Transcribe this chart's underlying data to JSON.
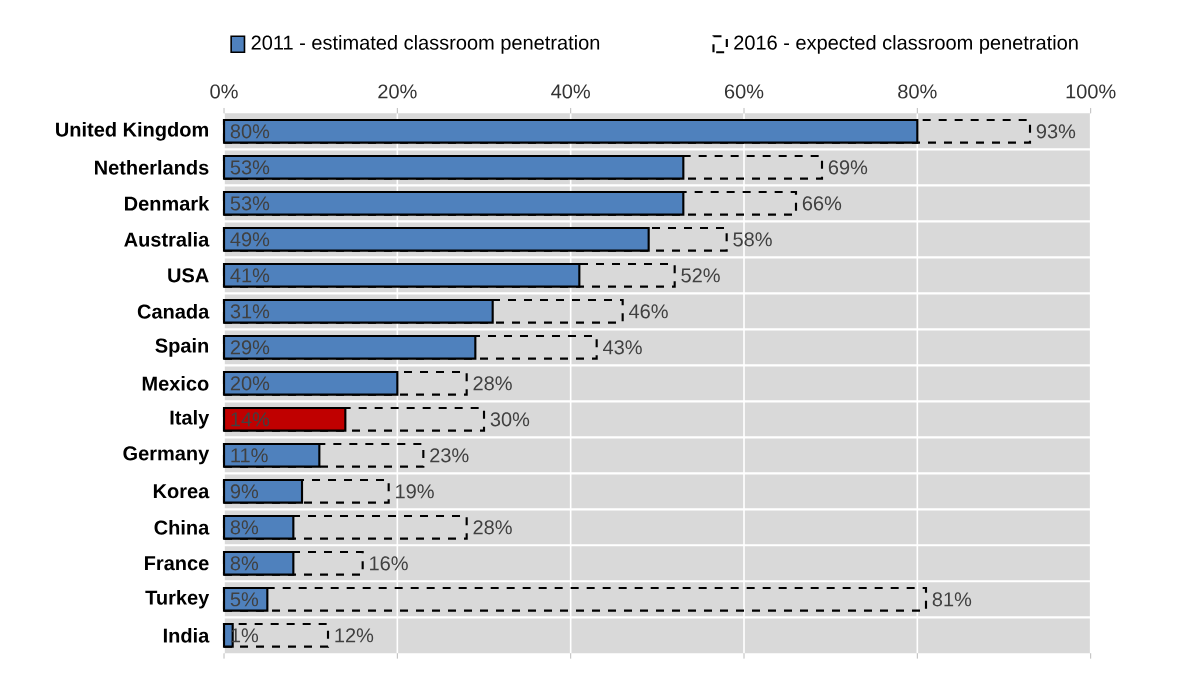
{
  "chart_data": {
    "type": "bar",
    "orientation": "horizontal",
    "categories": [
      "United Kingdom",
      "Netherlands",
      "Denmark",
      "Australia",
      "USA",
      "Canada",
      "Spain",
      "Mexico",
      "Italy",
      "Germany",
      "Korea",
      "China",
      "France",
      "Turkey",
      "India"
    ],
    "xlim": [
      0,
      100
    ],
    "xticks": [
      {
        "value": 0,
        "label": "0%"
      },
      {
        "value": 20,
        "label": "20%"
      },
      {
        "value": 40,
        "label": "40%"
      },
      {
        "value": 60,
        "label": "60%"
      },
      {
        "value": 80,
        "label": "80%"
      },
      {
        "value": 100,
        "label": "100%"
      }
    ],
    "grid": "x",
    "legend": "top",
    "series": [
      {
        "name": "2016 - expected classroom penetration",
        "color": "#000000",
        "line_style": "dashed",
        "values": [
          93,
          69,
          66,
          58,
          52,
          46,
          43,
          28,
          30,
          23,
          19,
          28,
          16,
          81,
          12
        ],
        "value_labels": [
          "93%",
          "69%",
          "66%",
          "58%",
          "52%",
          "46%",
          "43%",
          "28%",
          "30%",
          "23%",
          "19%",
          "28%",
          "16%",
          "81%",
          "12%"
        ]
      },
      {
        "name": "2011 - estimated classroom penetration",
        "color": "#4f81bd",
        "colors": [
          "#4f81bd",
          "#4f81bd",
          "#4f81bd",
          "#4f81bd",
          "#4f81bd",
          "#4f81bd",
          "#4f81bd",
          "#4f81bd",
          "#c00000",
          "#4f81bd",
          "#4f81bd",
          "#4f81bd",
          "#4f81bd",
          "#4f81bd",
          "#4f81bd"
        ],
        "values": [
          80,
          53,
          53,
          49,
          41,
          31,
          29,
          20,
          14,
          11,
          9,
          8,
          8,
          5,
          1
        ],
        "value_labels": [
          "80%",
          "53%",
          "53%",
          "49%",
          "41%",
          "31%",
          "29%",
          "20%",
          "14%",
          "11%",
          "9%",
          "8%",
          "8%",
          "5%",
          "1%"
        ]
      }
    ]
  }
}
